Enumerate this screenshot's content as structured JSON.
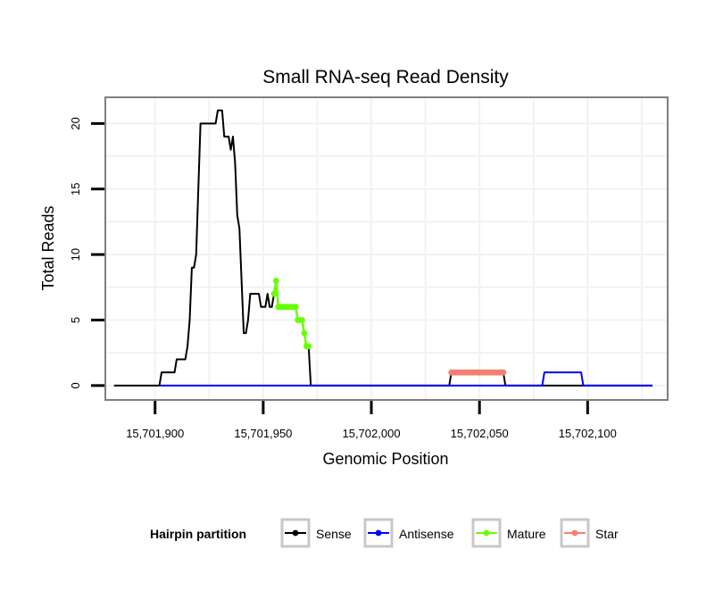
{
  "chart_data": {
    "type": "line",
    "title": "Small RNA-seq Read Density",
    "xlabel": "Genomic Position",
    "ylabel": "Total Reads",
    "xlim": [
      15701877,
      15702137
    ],
    "ylim": [
      -1.1,
      22
    ],
    "x_ticks": [
      15701900,
      15701950,
      15702000,
      15702050,
      15702100
    ],
    "x_tick_labels": [
      "15,701,900",
      "15,701,950",
      "15,702,000",
      "15,702,050",
      "15,702,100"
    ],
    "y_ticks": [
      0,
      5,
      10,
      15,
      20
    ],
    "y_tick_labels": [
      "0",
      "5",
      "10",
      "15",
      "20"
    ],
    "grid": true,
    "legend": {
      "title": "Hairpin partition",
      "placement": "bottom",
      "entries": [
        "Sense",
        "Antisense",
        "Mature",
        "Star"
      ]
    },
    "series": [
      {
        "name": "Sense",
        "color": "#000000",
        "points": [
          [
            15701881,
            0
          ],
          [
            15701902,
            0
          ],
          [
            15701903,
            1
          ],
          [
            15701909,
            1
          ],
          [
            15701910,
            2
          ],
          [
            15701914,
            2
          ],
          [
            15701915,
            3
          ],
          [
            15701916,
            5
          ],
          [
            15701917,
            9
          ],
          [
            15701918,
            9
          ],
          [
            15701919,
            10
          ],
          [
            15701920,
            15
          ],
          [
            15701921,
            20
          ],
          [
            15701928,
            20
          ],
          [
            15701929,
            21
          ],
          [
            15701931,
            21
          ],
          [
            15701932,
            19
          ],
          [
            15701934,
            19
          ],
          [
            15701935,
            18
          ],
          [
            15701936,
            19
          ],
          [
            15701937,
            17
          ],
          [
            15701938,
            13
          ],
          [
            15701939,
            12
          ],
          [
            15701940,
            8
          ],
          [
            15701941,
            4
          ],
          [
            15701942,
            4
          ],
          [
            15701943,
            5
          ],
          [
            15701944,
            7
          ],
          [
            15701948,
            7
          ],
          [
            15701949,
            6
          ],
          [
            15701951,
            6
          ],
          [
            15701952,
            7
          ],
          [
            15701953,
            6
          ],
          [
            15701954,
            6
          ],
          [
            15701955,
            7
          ],
          [
            15701956,
            8
          ],
          [
            15701957,
            6
          ],
          [
            15701965,
            6
          ],
          [
            15701966,
            5
          ],
          [
            15701968,
            5
          ],
          [
            15701969,
            4
          ],
          [
            15701970,
            3
          ],
          [
            15701971,
            3
          ],
          [
            15701972,
            0
          ],
          [
            15702036,
            0
          ],
          [
            15702037,
            1
          ],
          [
            15702061,
            1
          ],
          [
            15702062,
            0
          ],
          [
            15702130,
            0
          ]
        ]
      },
      {
        "name": "Antisense",
        "color": "#0000ff",
        "points": [
          [
            15701902,
            0
          ],
          [
            15702079,
            0
          ],
          [
            15702080,
            1
          ],
          [
            15702097,
            1
          ],
          [
            15702098,
            0
          ],
          [
            15702130,
            0
          ]
        ]
      },
      {
        "name": "Mature",
        "color": "#66ff00",
        "points": [
          [
            15701955,
            7
          ],
          [
            15701956,
            8
          ],
          [
            15701957,
            6
          ],
          [
            15701958,
            6
          ],
          [
            15701959,
            6
          ],
          [
            15701960,
            6
          ],
          [
            15701961,
            6
          ],
          [
            15701962,
            6
          ],
          [
            15701963,
            6
          ],
          [
            15701964,
            6
          ],
          [
            15701965,
            6
          ],
          [
            15701966,
            5
          ],
          [
            15701967,
            5
          ],
          [
            15701968,
            5
          ],
          [
            15701969,
            4
          ],
          [
            15701970,
            3
          ],
          [
            15701971,
            3
          ]
        ]
      },
      {
        "name": "Star",
        "color": "#f28072",
        "points": [
          [
            15702037,
            1
          ],
          [
            15702038,
            1
          ],
          [
            15702039,
            1
          ],
          [
            15702040,
            1
          ],
          [
            15702041,
            1
          ],
          [
            15702042,
            1
          ],
          [
            15702043,
            1
          ],
          [
            15702044,
            1
          ],
          [
            15702045,
            1
          ],
          [
            15702046,
            1
          ],
          [
            15702047,
            1
          ],
          [
            15702048,
            1
          ],
          [
            15702049,
            1
          ],
          [
            15702050,
            1
          ],
          [
            15702051,
            1
          ],
          [
            15702052,
            1
          ],
          [
            15702053,
            1
          ],
          [
            15702054,
            1
          ],
          [
            15702055,
            1
          ],
          [
            15702056,
            1
          ],
          [
            15702057,
            1
          ],
          [
            15702058,
            1
          ],
          [
            15702059,
            1
          ],
          [
            15702060,
            1
          ],
          [
            15702061,
            1
          ]
        ]
      }
    ]
  }
}
